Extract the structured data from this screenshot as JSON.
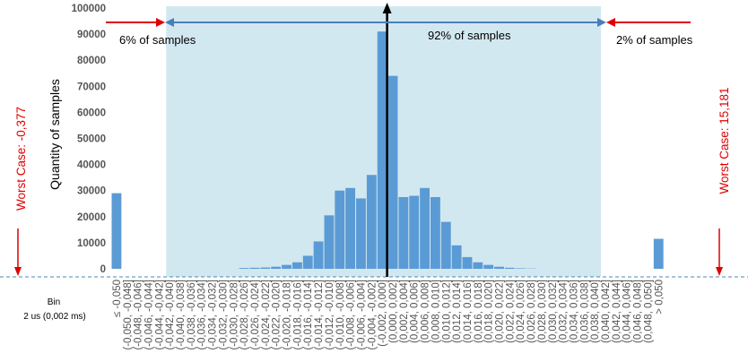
{
  "chart_data": {
    "type": "bar",
    "title": "",
    "xlabel": "Bin",
    "xlabel_sub": "2 us (0,002 ms)",
    "ylabel": "Quantity of samples",
    "ylim": [
      0,
      100000
    ],
    "yticks": [
      0,
      10000,
      20000,
      30000,
      40000,
      50000,
      60000,
      70000,
      80000,
      90000,
      100000
    ],
    "grid": false,
    "categories": [
      "≤ -0,050",
      "(-0,050, -0,048]",
      "(-0,048, -0,046]",
      "(-0,046, -0,044]",
      "(-0,044, -0,042]",
      "(-0,042, -0,040]",
      "(-0,040, -0,038]",
      "(-0,038, -0,036]",
      "(-0,036, -0,034]",
      "(-0,034, -0,032]",
      "(-0,032, -0,030]",
      "(-0,030, -0,028]",
      "(-0,028, -0,026]",
      "(-0,026, -0,024]",
      "(-0,024, -0,022]",
      "(-0,022, -0,020]",
      "(-0,020, -0,018]",
      "(-0,018, -0,016]",
      "(-0,016, -0,014]",
      "(-0,014, -0,012]",
      "(-0,012, -0,010]",
      "(-0,010, -0,008]",
      "(-0,008, -0,006]",
      "(-0,006, -0,004]",
      "(-0,004, -0,002]",
      "(-0,002, 0,000]",
      "(0,000, 0,002]",
      "(0,002, 0,004]",
      "(0,004, 0,006]",
      "(0,006, 0,008]",
      "(0,008, 0,010]",
      "(0,010, 0,012]",
      "(0,012, 0,014]",
      "(0,014, 0,016]",
      "(0,016, 0,018]",
      "(0,018, 0,020]",
      "(0,020, 0,022]",
      "(0,022, 0,024]",
      "(0,024, 0,026]",
      "(0,026, 0,028]",
      "(0,028, 0,030]",
      "(0,030, 0,032]",
      "(0,032, 0,034]",
      "(0,034, 0,036]",
      "(0,036, 0,038]",
      "(0,038, 0,040]",
      "(0,040, 0,042]",
      "(0,042, 0,044]",
      "(0,044, 0,046]",
      "(0,046, 0,048]",
      "(0,048, 0,050]",
      "> 0,050"
    ],
    "values": [
      29000,
      0,
      0,
      0,
      0,
      0,
      0,
      0,
      0,
      0,
      0,
      0,
      300,
      400,
      500,
      800,
      1500,
      2500,
      5000,
      10500,
      20500,
      30000,
      31000,
      27000,
      36000,
      91000,
      74000,
      27500,
      28000,
      31000,
      27500,
      18000,
      9000,
      4500,
      2500,
      1500,
      800,
      400,
      200,
      100,
      0,
      0,
      0,
      0,
      0,
      0,
      0,
      0,
      0,
      0,
      0,
      11500
    ],
    "series_color": "#5b9bd5",
    "region": {
      "from_category": 5,
      "to_category": 45,
      "color": "#d2e8f0"
    },
    "annotations": {
      "left_pct": "6% of samples",
      "center_pct": "92% of samples",
      "right_pct": "2% of samples",
      "worst_left": "Worst Case: -0,377",
      "worst_right": "Worst Case: 15,181"
    },
    "colors": {
      "blue_arrow": "#4a7ebb",
      "red_arrow": "#e00000",
      "dashed_axis": "#4a8ab0"
    }
  }
}
